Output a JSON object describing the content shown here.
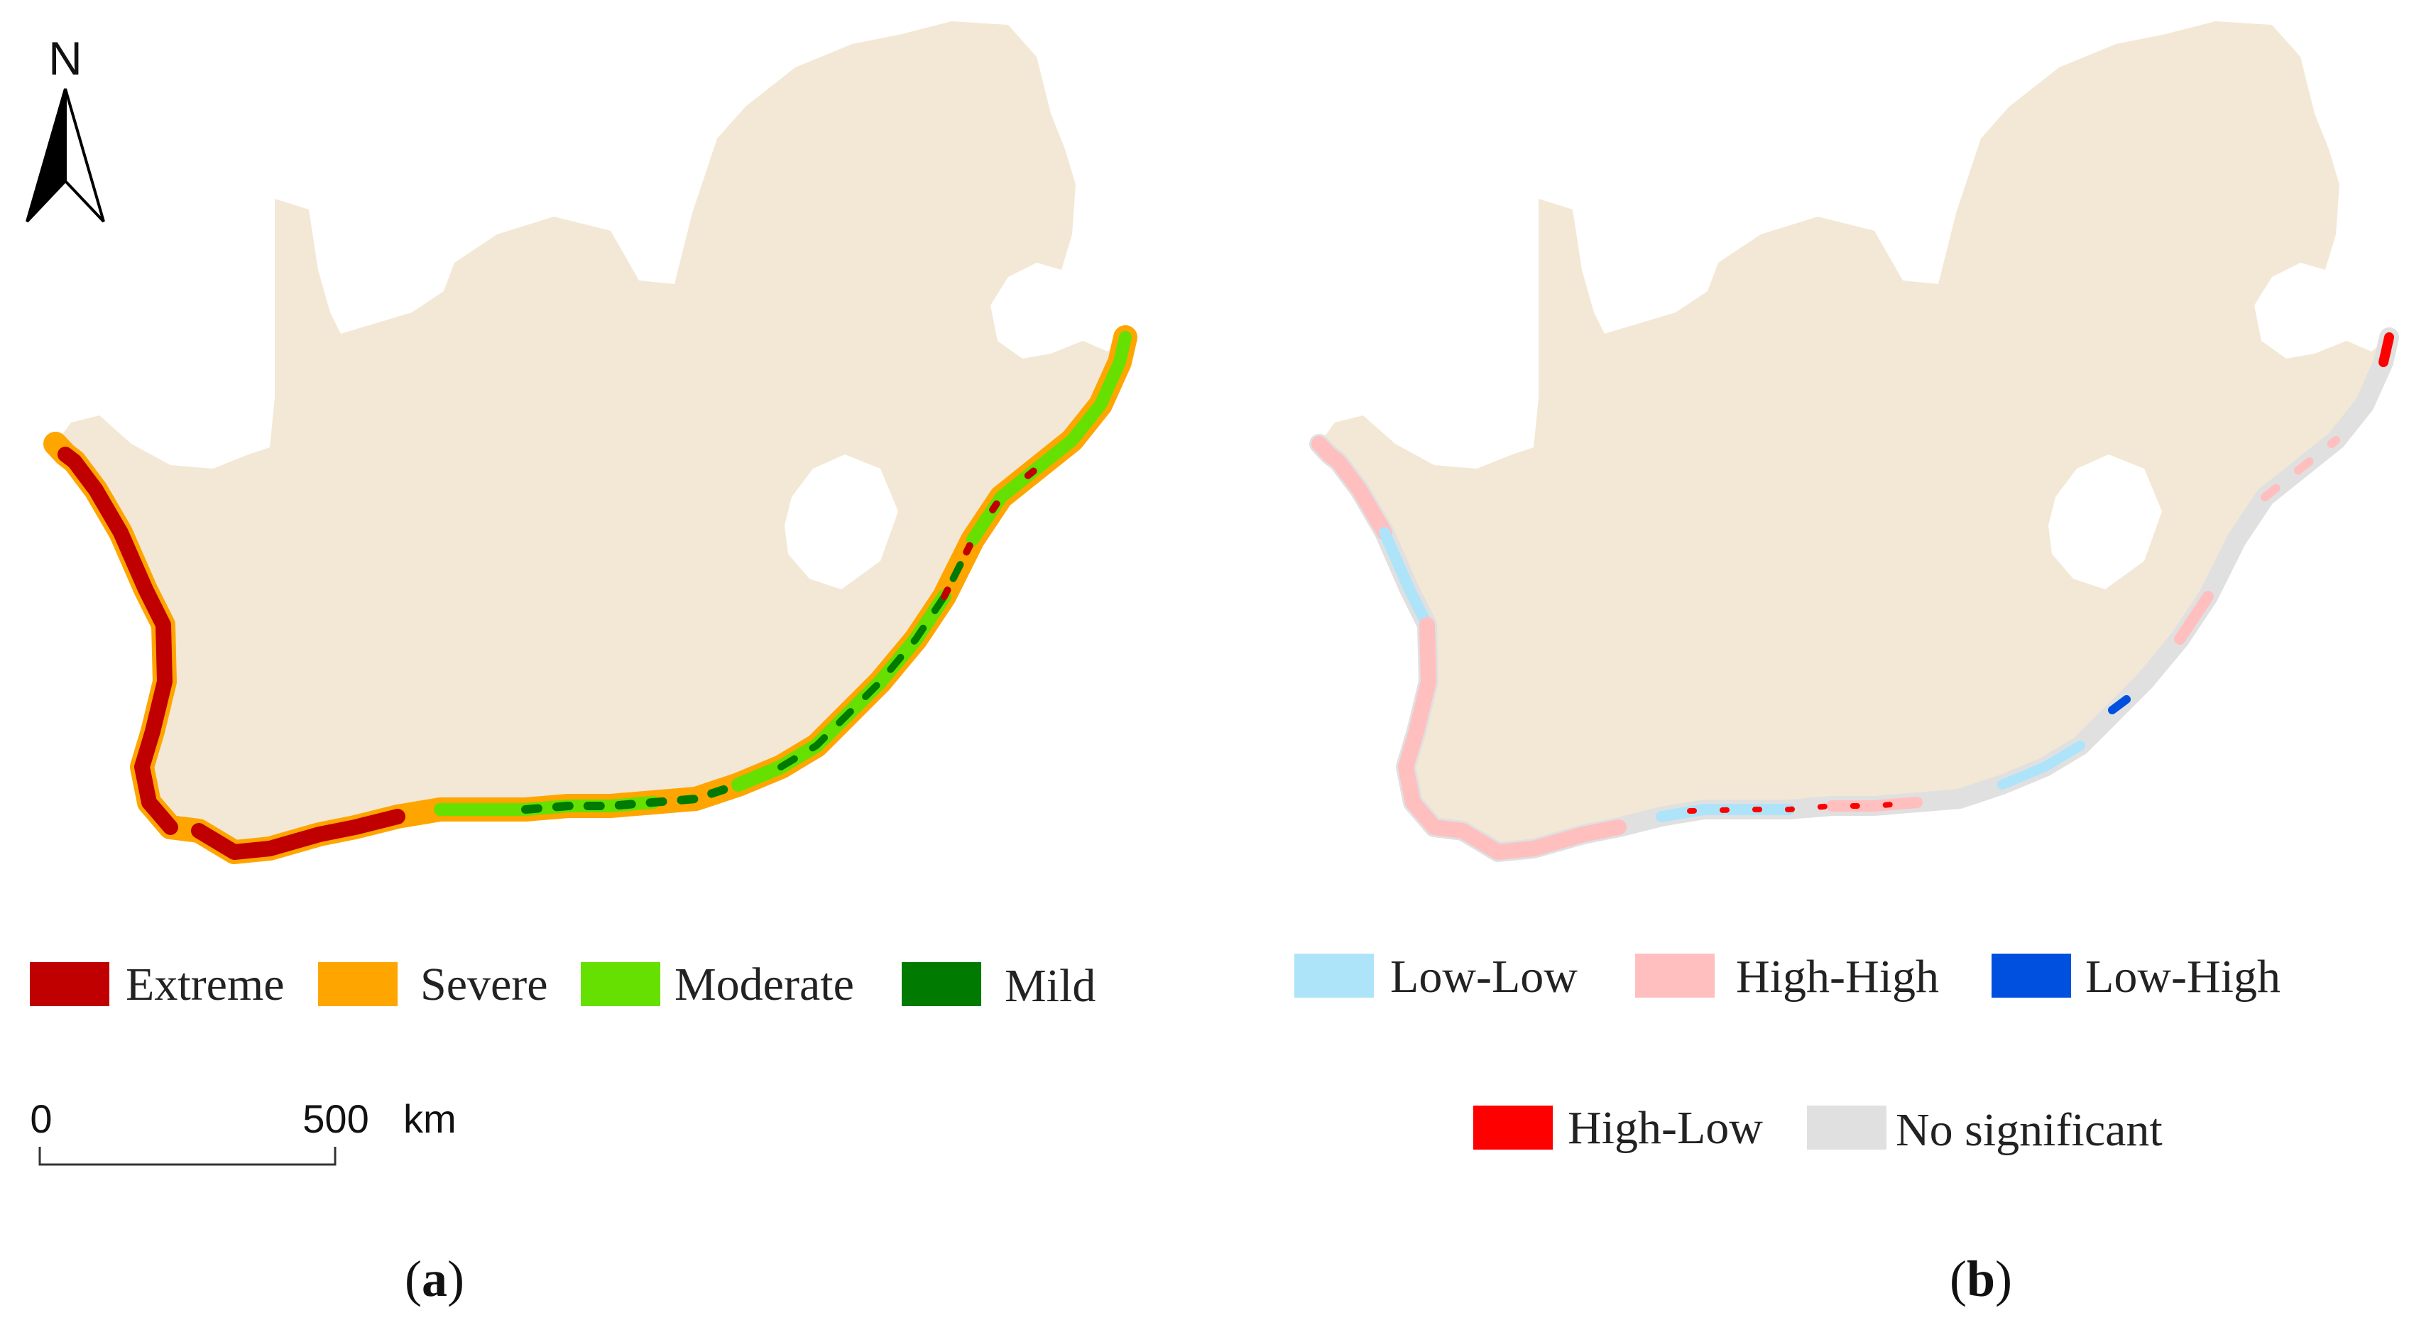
{
  "colors": {
    "land": "#F3E8D5",
    "extreme": "#C00000",
    "severe": "#FFA500",
    "moderate": "#66E000",
    "mild": "#007A00",
    "low_low": "#AEE4FA",
    "high_high": "#FFBFBF",
    "low_high": "#0050E0",
    "high_low": "#FF0000",
    "no_significant": "#E0E0E0"
  },
  "north_arrow": {
    "label": "N",
    "icon": "north-arrow-icon"
  },
  "scale_bar": {
    "start": "0",
    "end": "500",
    "unit": "km"
  },
  "panel_a": {
    "label_open": "(",
    "label_letter": "a",
    "label_close": ")",
    "legend": [
      "Extreme",
      "Severe",
      "Moderate",
      "Mild"
    ]
  },
  "panel_b": {
    "label_open": "(",
    "label_letter": "b",
    "label_close": ")",
    "legend": [
      "Low-Low",
      "High-High",
      "Low-High",
      "High-Low",
      "No significant"
    ]
  }
}
